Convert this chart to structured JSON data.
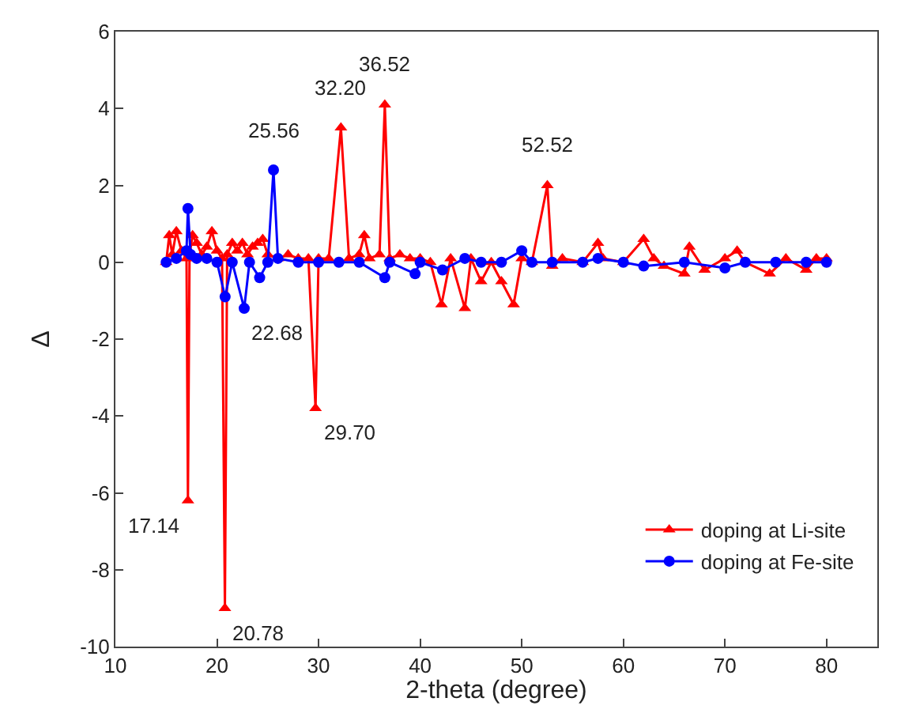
{
  "chart_data": {
    "type": "line",
    "xlabel": "2-theta (degree)",
    "ylabel": "Δ",
    "xlim": [
      10,
      85
    ],
    "xticks": [
      10,
      20,
      30,
      40,
      50,
      60,
      70,
      80
    ],
    "ylim": [
      -10,
      6
    ],
    "yticks": [
      -10,
      -8,
      -6,
      -4,
      -2,
      0,
      2,
      4,
      6
    ],
    "grid": false,
    "legend": "bottom right",
    "line_style": "solid",
    "series": [
      {
        "name": "doping at Li-site",
        "color": "#ff0000",
        "marker": "triangle",
        "x": [
          15,
          15.3,
          15.6,
          16,
          16.5,
          17,
          17.14,
          17.3,
          17.6,
          18,
          18.5,
          19,
          19.5,
          20,
          20.5,
          20.78,
          21,
          21.5,
          22,
          22.5,
          23,
          23.5,
          24,
          24.5,
          25,
          26,
          27,
          28,
          29,
          29.7,
          30,
          31,
          32.2,
          33,
          34,
          34.5,
          35,
          36,
          36.52,
          37,
          38,
          39,
          40,
          41,
          42.1,
          43,
          44.4,
          45,
          46,
          47,
          48,
          49.2,
          50,
          51,
          52.52,
          53,
          54,
          56,
          57.5,
          58,
          60,
          62,
          63,
          64,
          66,
          66.5,
          68,
          70,
          71.2,
          72,
          74.4,
          76,
          78,
          79,
          80
        ],
        "values": [
          0,
          0.7,
          0.2,
          0.8,
          0.3,
          0.1,
          -6.2,
          0.2,
          0.7,
          0.5,
          0.2,
          0.4,
          0.8,
          0.3,
          0.1,
          -9,
          0.2,
          0.5,
          0.3,
          0.5,
          0.2,
          0.4,
          0.5,
          0.6,
          0.2,
          0.1,
          0.2,
          0.1,
          0.1,
          -3.8,
          0.1,
          0.1,
          3.5,
          0.1,
          0.2,
          0.7,
          0.1,
          0.2,
          4.1,
          0.1,
          0.2,
          0.1,
          0.1,
          0,
          -1.1,
          0.1,
          -1.2,
          0.1,
          -0.5,
          0,
          -0.5,
          -1.1,
          0.1,
          0,
          2,
          -0.1,
          0.1,
          0,
          0.5,
          0.1,
          0,
          0.6,
          0.1,
          -0.1,
          -0.3,
          0.4,
          -0.2,
          0.1,
          0.3,
          0,
          -0.3,
          0.1,
          -0.2,
          0.1,
          0.1
        ]
      },
      {
        "name": "doping at Fe-site",
        "color": "#0000ff",
        "marker": "circle",
        "x": [
          15,
          16,
          17,
          17.14,
          17.4,
          18,
          19,
          20,
          20.8,
          21.5,
          22.68,
          23.2,
          24.2,
          25,
          25.56,
          26,
          28,
          30,
          32,
          34,
          36.52,
          37,
          39.5,
          40,
          42.2,
          44.4,
          46,
          48,
          50,
          51,
          53,
          56,
          57.5,
          60,
          62,
          66,
          70,
          72,
          75,
          78,
          80
        ],
        "values": [
          0,
          0.1,
          0.3,
          1.4,
          0.2,
          0.1,
          0.1,
          0,
          -0.9,
          0,
          -1.2,
          0,
          -0.4,
          0,
          2.4,
          0.1,
          0,
          0,
          0,
          0,
          -0.4,
          0,
          -0.3,
          0,
          -0.2,
          0.1,
          0,
          0,
          0.3,
          0,
          0,
          0,
          0.1,
          0,
          -0.1,
          0,
          -0.15,
          0,
          0,
          0,
          0
        ]
      }
    ],
    "annotations": [
      {
        "text": "17.14",
        "x": 17.14,
        "y": -6.2
      },
      {
        "text": "20.78",
        "x": 20.78,
        "y": -9
      },
      {
        "text": "22.68",
        "x": 22.68,
        "y": -1.2
      },
      {
        "text": "25.56",
        "x": 25.56,
        "y": 2.4
      },
      {
        "text": "29.70",
        "x": 29.7,
        "y": -3.8
      },
      {
        "text": "32.20",
        "x": 32.2,
        "y": 3.5
      },
      {
        "text": "36.52",
        "x": 36.52,
        "y": 4.1
      },
      {
        "text": "52.52",
        "x": 52.52,
        "y": 2
      }
    ]
  }
}
